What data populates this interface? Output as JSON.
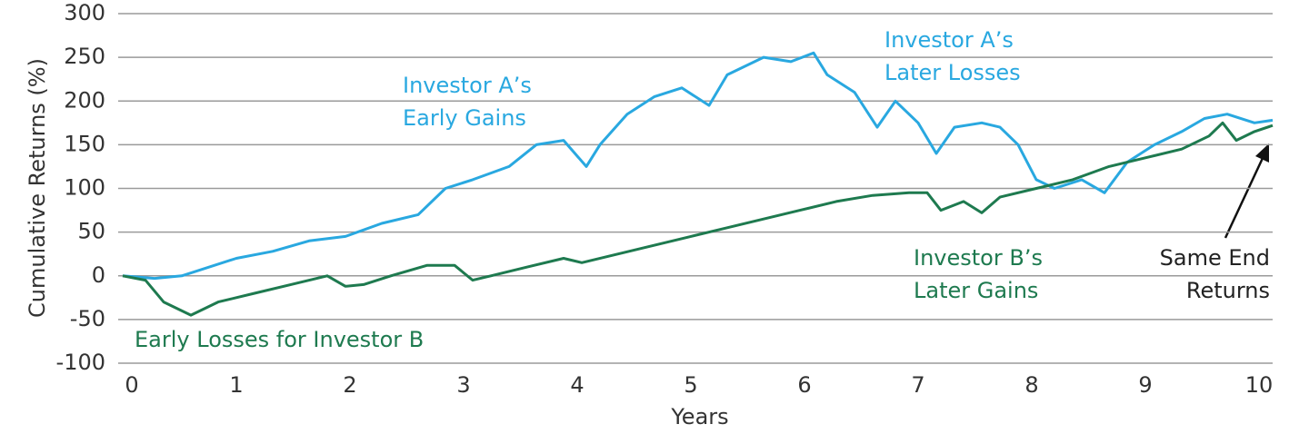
{
  "chart_data": {
    "type": "line",
    "xlabel": "Years",
    "ylabel": "Cumulative Returns (%)",
    "xlim": [
      0,
      10.12
    ],
    "ylim": [
      -100,
      300
    ],
    "xticks": [
      0,
      1,
      2,
      3,
      4,
      5,
      6,
      7,
      8,
      9,
      10
    ],
    "yticks": [
      -100,
      -50,
      0,
      50,
      100,
      150,
      200,
      250,
      300
    ],
    "grid": true,
    "series": [
      {
        "name": "Investor A",
        "color": "#29a8e0",
        "x": [
          0,
          0.28,
          0.52,
          1.0,
          1.32,
          1.64,
          1.96,
          2.28,
          2.6,
          2.84,
          3.08,
          3.4,
          3.64,
          3.88,
          4.08,
          4.2,
          4.44,
          4.68,
          4.92,
          5.16,
          5.32,
          5.64,
          5.88,
          6.08,
          6.2,
          6.44,
          6.64,
          6.8,
          7.0,
          7.16,
          7.32,
          7.56,
          7.72,
          7.88,
          8.04,
          8.2,
          8.44,
          8.64,
          8.84,
          9.08,
          9.32,
          9.52,
          9.72,
          9.96,
          10.12
        ],
        "values": [
          0,
          -3,
          0,
          20,
          28,
          40,
          45,
          60,
          70,
          100,
          110,
          125,
          150,
          155,
          125,
          150,
          185,
          205,
          215,
          195,
          230,
          250,
          245,
          255,
          230,
          210,
          170,
          200,
          175,
          140,
          170,
          175,
          170,
          150,
          110,
          100,
          110,
          95,
          130,
          150,
          165,
          180,
          185,
          175,
          178
        ]
      },
      {
        "name": "Investor B",
        "color": "#1e7a4f",
        "x": [
          0,
          0.2,
          0.36,
          0.6,
          0.84,
          1.16,
          1.48,
          1.8,
          1.96,
          2.12,
          2.36,
          2.68,
          2.92,
          3.08,
          3.24,
          3.56,
          3.88,
          4.04,
          4.36,
          4.68,
          5.0,
          5.32,
          5.64,
          5.96,
          6.28,
          6.6,
          6.92,
          7.08,
          7.2,
          7.4,
          7.56,
          7.72,
          8.04,
          8.36,
          8.68,
          9.0,
          9.32,
          9.56,
          9.68,
          9.8,
          9.96,
          10.12
        ],
        "values": [
          0,
          -5,
          -30,
          -45,
          -30,
          -20,
          -10,
          0,
          -12,
          -10,
          0,
          12,
          12,
          -5,
          0,
          10,
          20,
          15,
          25,
          35,
          45,
          55,
          65,
          75,
          85,
          92,
          95,
          95,
          75,
          85,
          72,
          90,
          100,
          110,
          125,
          135,
          145,
          160,
          175,
          155,
          165,
          172
        ]
      }
    ],
    "annotations": [
      {
        "lines": [
          "Investor A’s",
          "Early Gains"
        ],
        "color": "#29a8e0"
      },
      {
        "lines": [
          "Investor A’s",
          "Later Losses"
        ],
        "color": "#29a8e0"
      },
      {
        "lines": [
          "Investor B’s",
          "Later Gains"
        ],
        "color": "#1e7a4f"
      },
      {
        "lines": [
          "Same End",
          "Returns"
        ],
        "color": "#222222"
      },
      {
        "lines": [
          "Early Losses for Investor B"
        ],
        "color": "#1e7a4f"
      }
    ]
  }
}
